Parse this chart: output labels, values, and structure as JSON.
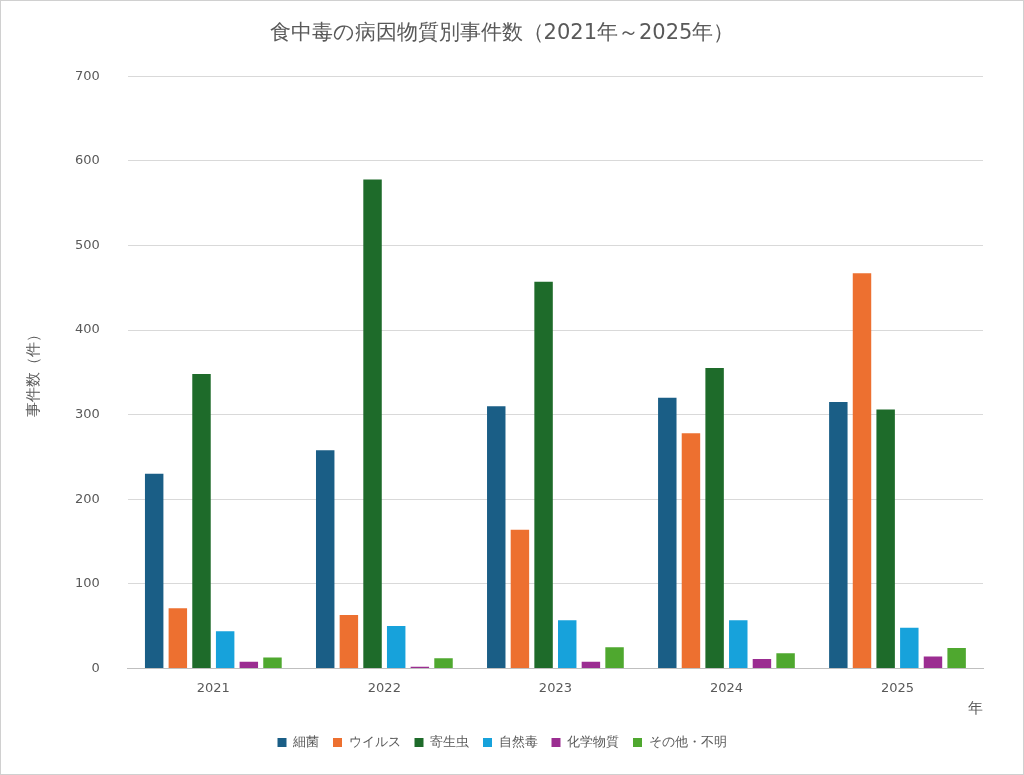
{
  "chart_data": {
    "type": "bar",
    "title": "食中毒の病因物質別事件数（2021年～2025年）",
    "xlabel": "年",
    "ylabel": "事件数（件）",
    "categories": [
      "2021",
      "2022",
      "2023",
      "2024",
      "2025"
    ],
    "series": [
      {
        "name": "細菌",
        "color": "#1a5e86",
        "values": [
          230,
          258,
          310,
          320,
          315
        ]
      },
      {
        "name": "ウイルス",
        "color": "#ed7030",
        "values": [
          71,
          63,
          164,
          278,
          467
        ]
      },
      {
        "name": "寄生虫",
        "color": "#1e6b2a",
        "values": [
          348,
          578,
          457,
          355,
          306
        ]
      },
      {
        "name": "自然毒",
        "color": "#17a2db",
        "values": [
          44,
          50,
          57,
          57,
          48
        ]
      },
      {
        "name": "化学物質",
        "color": "#9b2d91",
        "values": [
          8,
          2,
          8,
          11,
          14
        ]
      },
      {
        "name": "その他・不明",
        "color": "#4fa82f",
        "values": [
          13,
          12,
          25,
          18,
          24
        ]
      }
    ],
    "ylim": [
      0,
      700
    ],
    "yticks": [
      0,
      100,
      200,
      300,
      400,
      500,
      600,
      700
    ],
    "grid": "y",
    "legend": "bottom"
  }
}
